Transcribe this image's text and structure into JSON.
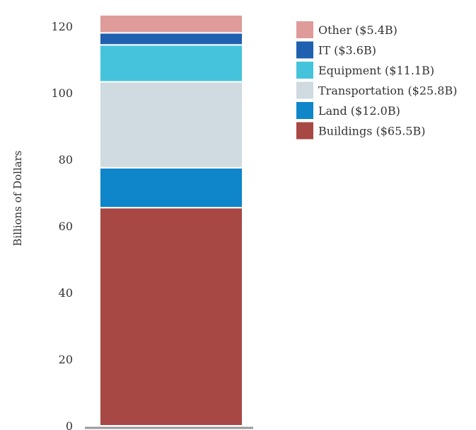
{
  "chart_data": {
    "type": "bar",
    "stacked": true,
    "categories": [
      ""
    ],
    "ylabel": "Billions of Dollars",
    "ylim": [
      0,
      120
    ],
    "yticks": [
      0,
      20,
      40,
      60,
      80,
      100,
      120
    ],
    "grid": false,
    "legend_position": "top-right",
    "series": [
      {
        "name": "Buildings ($65.5B)",
        "values": [
          65.5
        ],
        "color": "#a84844"
      },
      {
        "name": "Land ($12.0B)",
        "values": [
          12.0
        ],
        "color": "#0e86c9"
      },
      {
        "name": "Transportation ($25.8B)",
        "values": [
          25.8
        ],
        "color": "#cfdbe0"
      },
      {
        "name": "Equipment ($11.1B)",
        "values": [
          11.1
        ],
        "color": "#45c3dd"
      },
      {
        "name": "IT ($3.6B)",
        "values": [
          3.6
        ],
        "color": "#2060b0"
      },
      {
        "name": "Other ($5.4B)",
        "values": [
          5.4
        ],
        "color": "#df9a9a"
      }
    ]
  }
}
